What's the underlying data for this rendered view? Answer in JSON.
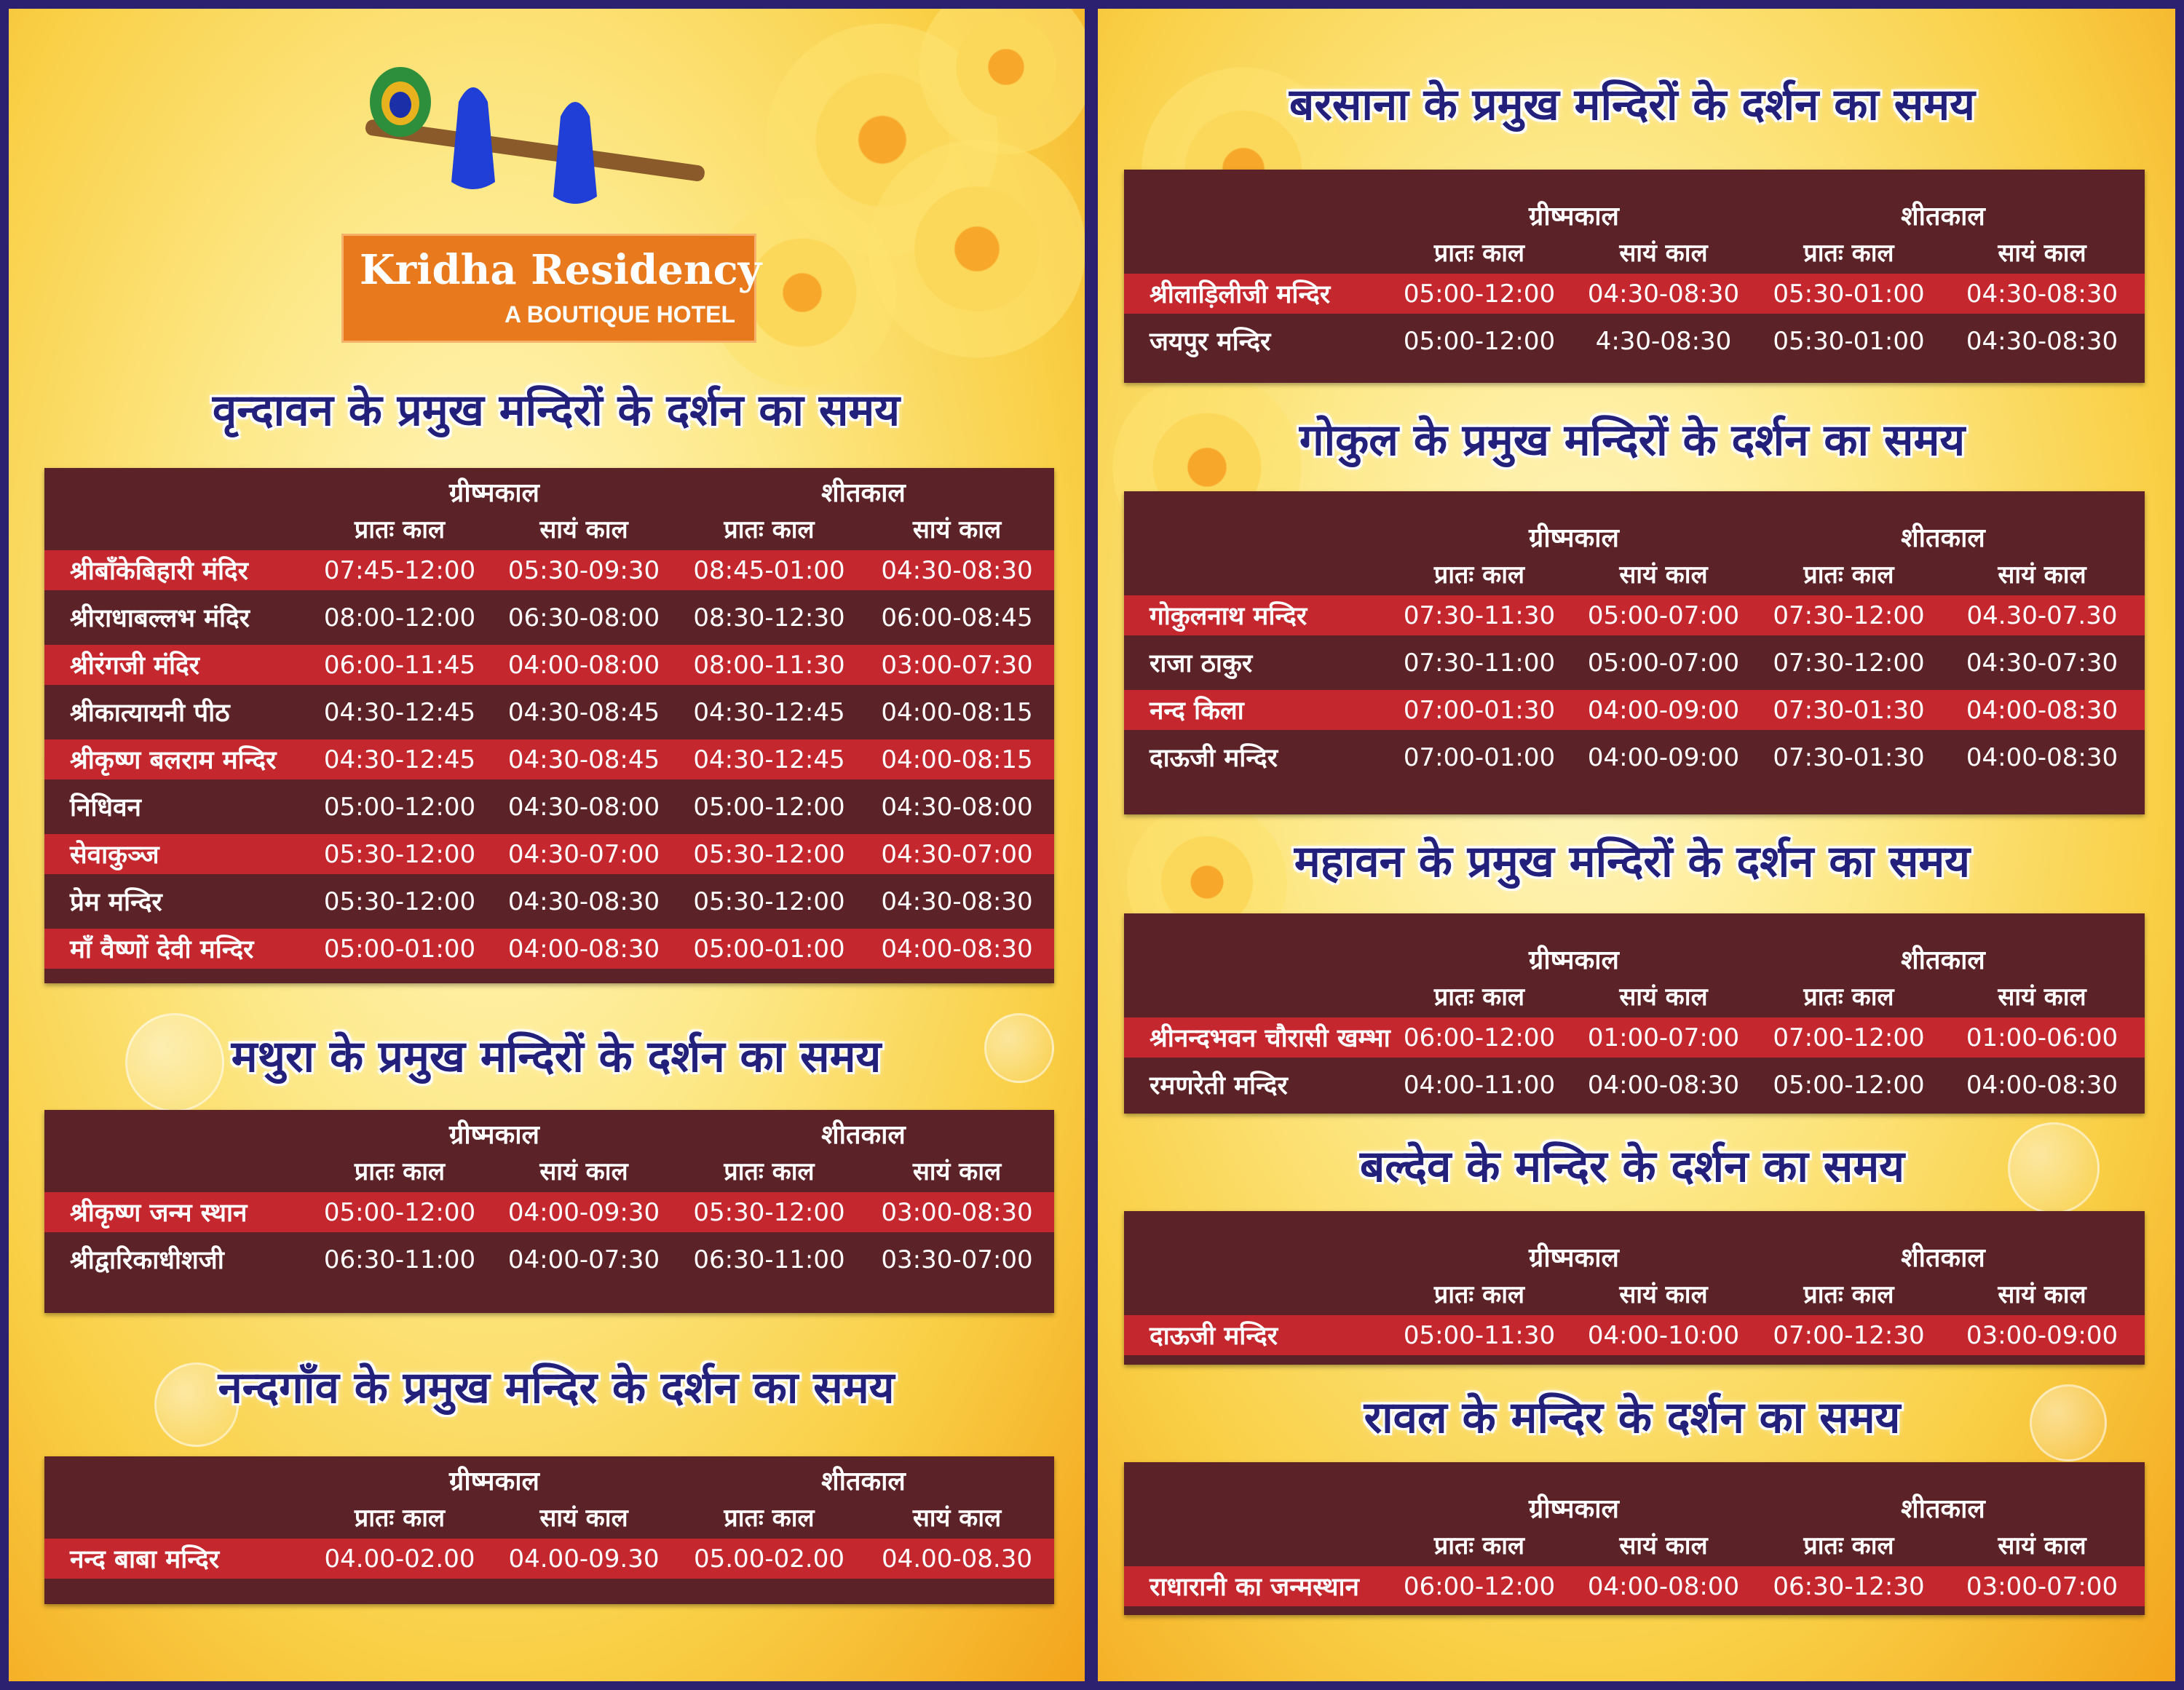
{
  "brand": {
    "name": "Kridha Residency",
    "tagline": "A BOUTIQUE HOTEL",
    "logo_icon": "flute-peacock-feather-hands-icon",
    "accent": "#e9791d"
  },
  "colors": {
    "title": "#22207a",
    "table_bg": "#5b2327",
    "row_highlight": "#c4282e",
    "border": "#2b2170"
  },
  "header_labels": {
    "groups": [
      "ग्रीष्मकाल",
      "शीतकाल"
    ],
    "subs": [
      "प्रातः काल",
      "सायं काल",
      "प्रातः काल",
      "सायं काल"
    ]
  },
  "sections": [
    {
      "title": "वृन्दावन के प्रमुख मन्दिरों के दर्शन का समय",
      "rows": [
        {
          "name": "श्रीबाँकेबिहारी मंदिर",
          "times": [
            "07:45-12:00",
            "05:30-09:30",
            "08:45-01:00",
            "04:30-08:30"
          ]
        },
        {
          "name": "श्रीराधाबल्लभ मंदिर",
          "times": [
            "08:00-12:00",
            "06:30-08:00",
            "08:30-12:30",
            "06:00-08:45"
          ]
        },
        {
          "name": "श्रीरंगजी मंदिर",
          "times": [
            "06:00-11:45",
            "04:00-08:00",
            "08:00-11:30",
            "03:00-07:30"
          ]
        },
        {
          "name": "श्रीकात्यायनी पीठ",
          "times": [
            "04:30-12:45",
            "04:30-08:45",
            "04:30-12:45",
            "04:00-08:15"
          ]
        },
        {
          "name": "श्रीकृष्ण बलराम मन्दिर",
          "times": [
            "04:30-12:45",
            "04:30-08:45",
            "04:30-12:45",
            "04:00-08:15"
          ]
        },
        {
          "name": "निधिवन",
          "times": [
            "05:00-12:00",
            "04:30-08:00",
            "05:00-12:00",
            "04:30-08:00"
          ]
        },
        {
          "name": "सेवाकुञ्ज",
          "times": [
            "05:30-12:00",
            "04:30-07:00",
            "05:30-12:00",
            "04:30-07:00"
          ]
        },
        {
          "name": "प्रेम मन्दिर",
          "times": [
            "05:30-12:00",
            "04:30-08:30",
            "05:30-12:00",
            "04:30-08:30"
          ]
        },
        {
          "name": "माँ वैष्णों देवी मन्दिर",
          "times": [
            "05:00-01:00",
            "04:00-08:30",
            "05:00-01:00",
            "04:00-08:30"
          ]
        }
      ]
    },
    {
      "title": "मथुरा के प्रमुख मन्दिरों के दर्शन का समय",
      "rows": [
        {
          "name": "श्रीकृष्ण जन्म स्थान",
          "times": [
            "05:00-12:00",
            "04:00-09:30",
            "05:30-12:00",
            "03:00-08:30"
          ]
        },
        {
          "name": "श्रीद्वारिकाधीशजी",
          "times": [
            "06:30-11:00",
            "04:00-07:30",
            "06:30-11:00",
            "03:30-07:00"
          ]
        }
      ]
    },
    {
      "title": "नन्दगाँव के प्रमुख मन्दिर के दर्शन का समय",
      "rows": [
        {
          "name": "नन्द बाबा मन्दिर",
          "times": [
            "04.00-02.00",
            "04.00-09.30",
            "05.00-02.00",
            "04.00-08.30"
          ]
        }
      ]
    },
    {
      "title": "बरसाना के प्रमुख मन्दिरों के दर्शन का समय",
      "rows": [
        {
          "name": "श्रीलाड़िलीजी मन्दिर",
          "times": [
            "05:00-12:00",
            "04:30-08:30",
            "05:30-01:00",
            "04:30-08:30"
          ]
        },
        {
          "name": "जयपुर मन्दिर",
          "times": [
            "05:00-12:00",
            "4:30-08:30",
            "05:30-01:00",
            "04:30-08:30"
          ]
        }
      ]
    },
    {
      "title": "गोकुल के प्रमुख मन्दिरों के दर्शन का समय",
      "rows": [
        {
          "name": "गोकुलनाथ मन्दिर",
          "times": [
            "07:30-11:30",
            "05:00-07:00",
            "07:30-12:00",
            "04.30-07.30"
          ]
        },
        {
          "name": "राजा ठाकुर",
          "times": [
            "07:30-11:00",
            "05:00-07:00",
            "07:30-12:00",
            "04:30-07:30"
          ]
        },
        {
          "name": "नन्द किला",
          "times": [
            "07:00-01:30",
            "04:00-09:00",
            "07:30-01:30",
            "04:00-08:30"
          ]
        },
        {
          "name": "दाऊजी मन्दिर",
          "times": [
            "07:00-01:00",
            "04:00-09:00",
            "07:30-01:30",
            "04:00-08:30"
          ]
        }
      ]
    },
    {
      "title": "महावन के प्रमुख मन्दिरों के दर्शन का समय",
      "rows": [
        {
          "name": "श्रीनन्दभवन चौरासी खम्भा",
          "times": [
            "06:00-12:00",
            "01:00-07:00",
            "07:00-12:00",
            "01:00-06:00"
          ]
        },
        {
          "name": "रमणरेती मन्दिर",
          "times": [
            "04:00-11:00",
            "04:00-08:30",
            "05:00-12:00",
            "04:00-08:30"
          ]
        }
      ]
    },
    {
      "title": "बल्देव के मन्दिर के दर्शन का समय",
      "rows": [
        {
          "name": "दाऊजी मन्दिर",
          "times": [
            "05:00-11:30",
            "04:00-10:00",
            "07:00-12:30",
            "03:00-09:00"
          ]
        }
      ]
    },
    {
      "title": "रावल के मन्दिर के दर्शन का समय",
      "rows": [
        {
          "name": "राधारानी का जन्मस्थान",
          "times": [
            "06:00-12:00",
            "04:00-08:00",
            "06:30-12:30",
            "03:00-07:00"
          ]
        }
      ]
    }
  ]
}
